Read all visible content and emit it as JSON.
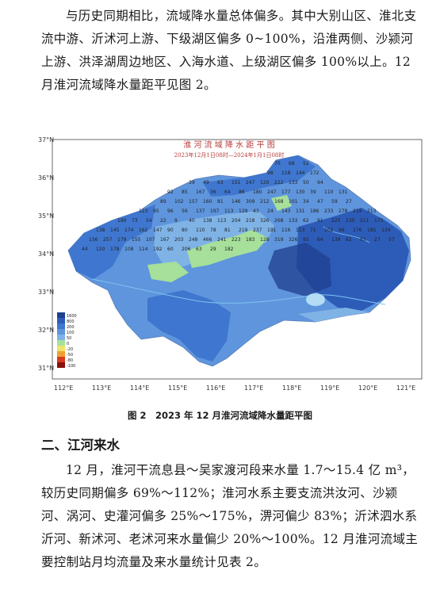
{
  "paragraph_1": "与历史同期相比，流域降水量总体偏多。其中大别山区、淮北支流中游、沂沭河上游、下级湖区偏多 0~100%，沿淮两侧、沙颍河上游、洪泽湖周边地区、入海水道、上级湖区偏多 100%以上。12 月淮河流域降水量距平见图 2。",
  "map": {
    "title": "淮 河 流 域 降 水 距 平 图",
    "subtitle": "2023年12月1日08时—2024年1月1日08时",
    "lat_labels": [
      "37°N",
      "36°N",
      "35°N",
      "34°N",
      "33°N",
      "32°N",
      "31°N"
    ],
    "lon_labels": [
      "112°E",
      "113°E",
      "114°E",
      "115°E",
      "116°E",
      "117°E",
      "118°E",
      "119°E",
      "120°E",
      "121°E"
    ],
    "legend": [
      {
        "label": "1600",
        "color": "#1f3f8f"
      },
      {
        "label": "800",
        "color": "#2d5cb8"
      },
      {
        "label": "200",
        "color": "#3f76cf"
      },
      {
        "label": "100",
        "color": "#5f95dc"
      },
      {
        "label": "50",
        "color": "#7fb3e6"
      },
      {
        "label": "0",
        "color": "#a6e09a"
      },
      {
        "label": "-20",
        "color": "#f0e36a"
      },
      {
        "label": "-50",
        "color": "#f0a030"
      },
      {
        "label": "-80",
        "color": "#d83a20"
      },
      {
        "label": "-100",
        "color": "#8a0f0f"
      }
    ],
    "station_values": [
      "70",
      "68",
      "52",
      "98",
      "118",
      "144",
      "172",
      "39",
      "49",
      "63",
      "151",
      "247",
      "120",
      "222",
      "133",
      "50",
      "94",
      "92",
      "85",
      "167",
      "36",
      "64",
      "86",
      "180",
      "247",
      "177",
      "130",
      "39",
      "110",
      "131",
      "89",
      "102",
      "157",
      "160",
      "81",
      "146",
      "309",
      "212",
      "168",
      "101",
      "34",
      "47",
      "59",
      "27",
      "123",
      "95",
      "96",
      "56",
      "137",
      "197",
      "113",
      "129",
      "43",
      "24",
      "143",
      "131",
      "186",
      "233",
      "278",
      "219",
      "213",
      "190",
      "73",
      "54",
      "22",
      "9",
      "40",
      "138",
      "113",
      "204",
      "218",
      "326",
      "268",
      "133",
      "62",
      "91",
      "225",
      "230",
      "211",
      "173",
      "138",
      "145",
      "174",
      "162",
      "147",
      "90",
      "80",
      "110",
      "78",
      "81",
      "219",
      "237",
      "191",
      "116",
      "113",
      "71",
      "102",
      "96",
      "176",
      "185",
      "134",
      "156",
      "257",
      "179",
      "155",
      "107",
      "167",
      "203",
      "248",
      "466",
      "241",
      "223",
      "183",
      "128",
      "319",
      "326",
      "95",
      "64",
      "139",
      "62",
      "55",
      "27",
      "57",
      "44",
      "120",
      "178",
      "108",
      "114",
      "192",
      "60",
      "206",
      "63",
      "29",
      "182"
    ]
  },
  "figure_caption": "图 2　2023 年 12 月淮河流域降水量距平图",
  "section_heading": "二、江河来水",
  "paragraph_2": "12 月，淮河干流息县～吴家渡河段来水量 1.7～15.4 亿 m³，较历史同期偏多 69%～112%；淮河水系主要支流洪汝河、沙颍河、涡河、史灌河偏多 25%～175%，淠河偏少 83%；沂沭泗水系沂河、新沭河、老沭河来水量偏少 20%～100%。12 月淮河流域主要控制站月均流量及来水量统计见表 2。"
}
